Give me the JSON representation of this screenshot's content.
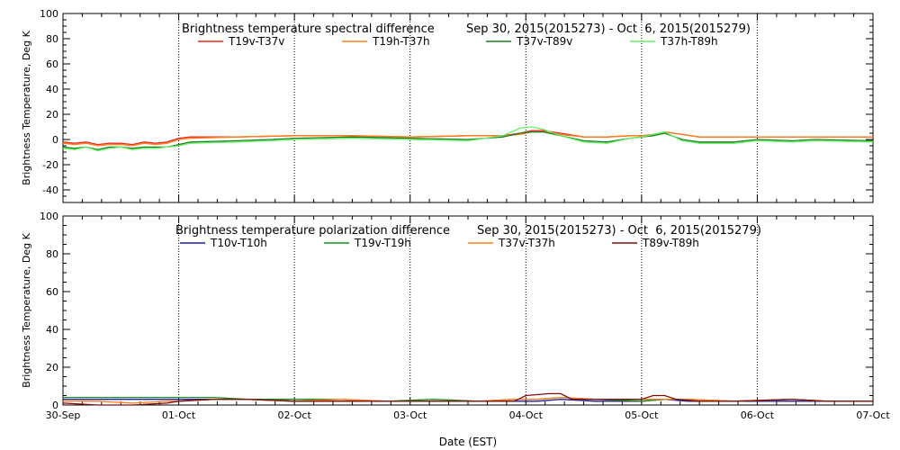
{
  "chart_data": [
    {
      "type": "line",
      "title": "Brightness temperature spectral difference",
      "date_range": "Sep 30, 2015(2015273) - Oct  6, 2015(2015279)",
      "ylabel": "Brightness Temperature, Deg K",
      "xlabel": "",
      "ylim": [
        -50,
        100
      ],
      "yticks": [
        -40,
        -20,
        0,
        20,
        40,
        60,
        80,
        100
      ],
      "xlim": [
        0,
        7
      ],
      "xtick_labels": [],
      "grid": true,
      "legend_position": "top",
      "series": [
        {
          "name": "T19v-T37v",
          "color": "#e8281e",
          "x": [
            0,
            0.1,
            0.2,
            0.3,
            0.4,
            0.5,
            0.6,
            0.7,
            0.8,
            0.9,
            1.0,
            1.1,
            1.5,
            2.0,
            2.5,
            3.0,
            3.5,
            3.8,
            3.95,
            4.05,
            4.15,
            4.3,
            4.5,
            4.7,
            4.9,
            5.0,
            5.1,
            5.2,
            5.35,
            5.5,
            5.8,
            6.0,
            6.5,
            7.0
          ],
          "values": [
            -2,
            -3,
            -2,
            -4,
            -3,
            -3,
            -4,
            -2,
            -3,
            -2,
            1,
            2,
            2,
            3,
            3,
            2,
            3,
            3,
            5,
            7,
            7,
            5,
            2,
            2,
            3,
            3,
            4,
            6,
            4,
            2,
            2,
            2,
            2,
            2
          ]
        },
        {
          "name": "T19h-T37h",
          "color": "#ff7f1e",
          "x": [
            0,
            0.1,
            0.2,
            0.3,
            0.4,
            0.5,
            0.6,
            0.7,
            0.8,
            0.9,
            1.0,
            1.1,
            1.5,
            2.0,
            2.5,
            3.0,
            3.5,
            3.8,
            3.95,
            4.05,
            4.15,
            4.3,
            4.5,
            4.7,
            4.9,
            5.0,
            5.1,
            5.2,
            5.35,
            5.5,
            5.8,
            6.0,
            6.5,
            7.0
          ],
          "values": [
            -3,
            -4,
            -3,
            -5,
            -4,
            -4,
            -5,
            -3,
            -4,
            -3,
            0,
            1,
            2,
            3,
            3,
            2,
            3,
            3,
            4,
            6,
            6,
            4,
            2,
            2,
            3,
            3,
            4,
            6,
            4,
            2,
            2,
            2,
            2,
            2
          ]
        },
        {
          "name": "T37v-T89v",
          "color": "#15801e",
          "x": [
            0,
            0.1,
            0.2,
            0.3,
            0.4,
            0.5,
            0.6,
            0.7,
            0.8,
            0.9,
            1.0,
            1.1,
            1.5,
            1.8,
            2.0,
            2.5,
            3.0,
            3.5,
            3.8,
            3.95,
            4.05,
            4.15,
            4.3,
            4.5,
            4.7,
            4.9,
            5.0,
            5.1,
            5.2,
            5.35,
            5.5,
            5.8,
            6.0,
            6.3,
            6.5,
            7.0
          ],
          "values": [
            -6,
            -7,
            -6,
            -8,
            -6,
            -6,
            -7,
            -6,
            -6,
            -6,
            -4,
            -2,
            -1,
            0,
            1,
            2,
            1,
            0,
            2,
            5,
            6,
            6,
            3,
            -1,
            -2,
            1,
            2,
            3,
            5,
            0,
            -2,
            -2,
            0,
            -1,
            0,
            -1
          ]
        },
        {
          "name": "T37h-T89h",
          "color": "#66ee66",
          "x": [
            0,
            0.1,
            0.2,
            0.3,
            0.4,
            0.5,
            0.6,
            0.7,
            0.8,
            0.9,
            1.0,
            1.1,
            1.5,
            1.8,
            2.0,
            2.5,
            3.0,
            3.5,
            3.8,
            3.95,
            4.05,
            4.15,
            4.3,
            4.5,
            4.7,
            4.9,
            5.0,
            5.1,
            5.2,
            5.35,
            5.5,
            5.8,
            6.0,
            6.3,
            6.5,
            7.0
          ],
          "values": [
            -7,
            -8,
            -6,
            -9,
            -7,
            -6,
            -8,
            -7,
            -7,
            -6,
            -5,
            -3,
            -2,
            -1,
            0,
            1,
            0,
            -1,
            3,
            9,
            10,
            8,
            3,
            -2,
            -3,
            1,
            2,
            4,
            6,
            -1,
            -3,
            -3,
            -1,
            -2,
            -1,
            -2
          ]
        }
      ]
    },
    {
      "type": "line",
      "title": "Brightness temperature polarization difference",
      "date_range": "Sep 30, 2015(2015273) - Oct  6, 2015(2015279)",
      "ylabel": "Brightness Temperature, Deg K",
      "xlabel": "Date (EST)",
      "ylim": [
        0,
        100
      ],
      "yticks": [
        0,
        20,
        40,
        60,
        80,
        100
      ],
      "xlim": [
        0,
        7
      ],
      "xtick_labels": [
        "30-Sep",
        "01-Oct",
        "02-Oct",
        "03-Oct",
        "04-Oct",
        "05-Oct",
        "06-Oct",
        "07-Oct"
      ],
      "grid": true,
      "legend_position": "top",
      "series": [
        {
          "name": "T10v-T10h",
          "color": "#1e1e9e",
          "x": [
            0,
            0.3,
            0.6,
            0.9,
            1.0,
            1.3,
            1.6,
            2.0,
            2.4,
            2.8,
            3.2,
            3.6,
            3.9,
            4.1,
            4.3,
            4.6,
            5.0,
            5.2,
            5.4,
            5.8,
            6.3,
            6.6,
            7.0
          ],
          "values": [
            3,
            3,
            3,
            3,
            3,
            3,
            3,
            2,
            2,
            2,
            2,
            2,
            2,
            2,
            3,
            2,
            2,
            3,
            2,
            2,
            2,
            2,
            2
          ]
        },
        {
          "name": "T19v-T19h",
          "color": "#15901e",
          "x": [
            0,
            0.3,
            0.6,
            0.9,
            1.0,
            1.3,
            1.6,
            2.0,
            2.4,
            2.8,
            3.2,
            3.6,
            3.9,
            4.1,
            4.3,
            4.6,
            5.0,
            5.2,
            5.4,
            5.8,
            6.3,
            6.6,
            7.0
          ],
          "values": [
            4,
            4,
            4,
            4,
            4,
            4,
            3,
            3,
            3,
            2,
            3,
            2,
            3,
            3,
            4,
            3,
            2,
            3,
            3,
            2,
            3,
            2,
            2
          ]
        },
        {
          "name": "T37v-T37h",
          "color": "#ff7f1e",
          "x": [
            0,
            0.3,
            0.6,
            0.9,
            1.0,
            1.3,
            1.6,
            2.0,
            2.4,
            2.8,
            3.2,
            3.6,
            3.9,
            4.1,
            4.3,
            4.6,
            5.0,
            5.2,
            5.4,
            5.8,
            6.3,
            6.6,
            7.0
          ],
          "values": [
            2,
            2,
            1,
            2,
            2,
            3,
            3,
            2,
            3,
            2,
            2,
            2,
            3,
            3,
            4,
            3,
            3,
            3,
            3,
            2,
            3,
            2,
            2
          ]
        },
        {
          "name": "T89v-T89h",
          "color": "#7a1010",
          "x": [
            0,
            0.3,
            0.6,
            0.9,
            1.0,
            1.3,
            1.6,
            2.0,
            2.4,
            2.8,
            3.2,
            3.6,
            3.9,
            4.0,
            4.2,
            4.3,
            4.4,
            4.6,
            5.0,
            5.1,
            5.2,
            5.3,
            5.5,
            5.8,
            6.3,
            6.6,
            7.0
          ],
          "values": [
            1,
            0,
            0,
            1,
            2,
            3,
            3,
            2,
            2,
            2,
            2,
            2,
            2,
            5,
            6,
            6,
            3,
            3,
            3,
            5,
            5,
            3,
            2,
            2,
            3,
            2,
            2
          ]
        }
      ]
    }
  ]
}
